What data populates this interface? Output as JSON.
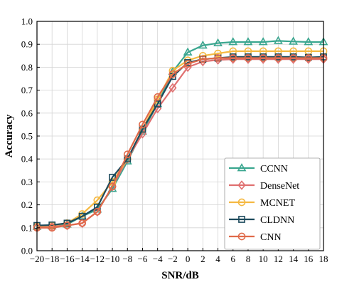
{
  "chart_data": {
    "type": "line",
    "xlabel": "SNR/dB",
    "ylabel": "Accuracy",
    "xlim": [
      -20,
      18
    ],
    "ylim": [
      0.0,
      1.0
    ],
    "x": [
      -20,
      -18,
      -16,
      -14,
      -12,
      -10,
      -8,
      -6,
      -4,
      -2,
      0,
      2,
      4,
      6,
      8,
      10,
      12,
      14,
      16,
      18
    ],
    "x_tick_labels": [
      "−20",
      "−18",
      "−16",
      "−14",
      "−12",
      "−10",
      "−8",
      "−6",
      "−4",
      "−2",
      "0",
      "2",
      "4",
      "6",
      "8",
      "10",
      "12",
      "14",
      "16",
      "18"
    ],
    "y_ticks": [
      0.0,
      0.1,
      0.2,
      0.3,
      0.4,
      0.5,
      0.6,
      0.7,
      0.8,
      0.9,
      1.0
    ],
    "y_tick_labels": [
      "0.0",
      "0.1",
      "0.2",
      "0.3",
      "0.4",
      "0.5",
      "0.6",
      "0.7",
      "0.8",
      "0.9",
      "1.0"
    ],
    "grid": true,
    "legend_position": "bottom-right",
    "series": [
      {
        "name": "CCNN",
        "marker": "triangle",
        "color": "#3aa68f",
        "values": [
          0.105,
          0.107,
          0.115,
          0.15,
          0.18,
          0.27,
          0.39,
          0.52,
          0.64,
          0.78,
          0.865,
          0.895,
          0.905,
          0.91,
          0.91,
          0.91,
          0.915,
          0.912,
          0.91,
          0.91
        ]
      },
      {
        "name": "DenseNet",
        "marker": "diamond",
        "color": "#e07070",
        "values": [
          0.102,
          0.105,
          0.11,
          0.12,
          0.17,
          0.28,
          0.4,
          0.51,
          0.62,
          0.71,
          0.8,
          0.825,
          0.832,
          0.835,
          0.835,
          0.835,
          0.835,
          0.835,
          0.835,
          0.835
        ]
      },
      {
        "name": "MCNET",
        "marker": "circle",
        "color": "#f5b942",
        "values": [
          0.108,
          0.11,
          0.12,
          0.16,
          0.22,
          0.3,
          0.4,
          0.53,
          0.66,
          0.785,
          0.83,
          0.85,
          0.86,
          0.87,
          0.87,
          0.87,
          0.87,
          0.87,
          0.87,
          0.87
        ]
      },
      {
        "name": "CLDNN",
        "marker": "square",
        "color": "#1c4a5c",
        "values": [
          0.11,
          0.112,
          0.12,
          0.15,
          0.19,
          0.32,
          0.4,
          0.53,
          0.64,
          0.76,
          0.82,
          0.835,
          0.84,
          0.845,
          0.845,
          0.845,
          0.845,
          0.845,
          0.843,
          0.845
        ]
      },
      {
        "name": "CNN",
        "marker": "circle",
        "color": "#e06a4a",
        "values": [
          0.1,
          0.1,
          0.11,
          0.12,
          0.17,
          0.28,
          0.42,
          0.55,
          0.67,
          0.77,
          0.815,
          0.835,
          0.84,
          0.84,
          0.84,
          0.84,
          0.84,
          0.84,
          0.84,
          0.84
        ]
      }
    ]
  }
}
